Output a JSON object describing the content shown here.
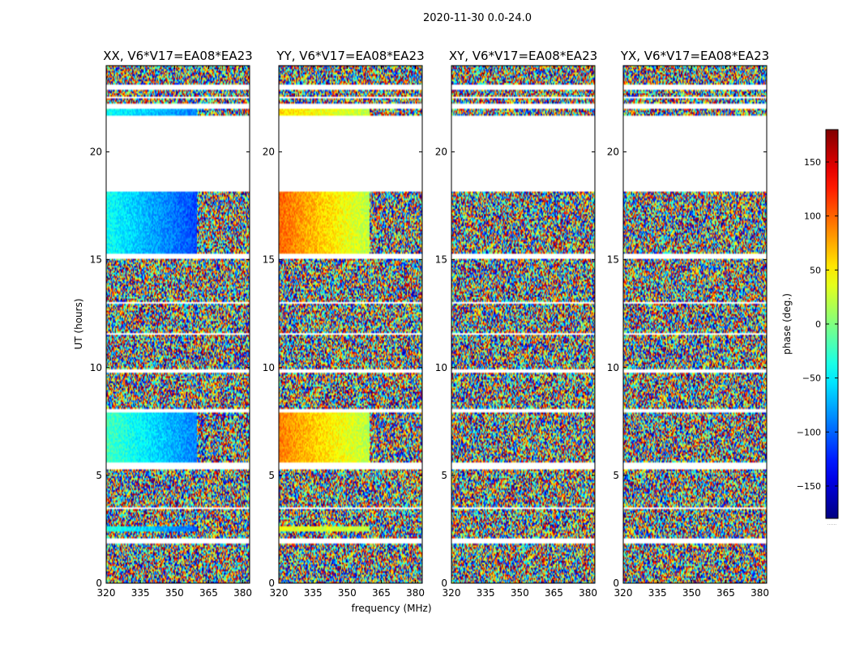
{
  "suptitle": "2020-11-30 0.0-24.0",
  "chart_data": {
    "type": "heatmap",
    "title": "2020-11-30 0.0-24.0",
    "xlabel": "frequency (MHz)",
    "ylabel": "UT (hours)",
    "xlim": [
      320,
      383
    ],
    "ylim": [
      0,
      24
    ],
    "xticks": [
      "320",
      "335",
      "350",
      "365",
      "380"
    ],
    "xtick_values": [
      320,
      335,
      350,
      365,
      380
    ],
    "yticks": [
      "0",
      "5",
      "10",
      "15",
      "20"
    ],
    "ytick_values": [
      0,
      5,
      10,
      15,
      20
    ],
    "panels": [
      {
        "title": "XX, V6*V17=EA08*EA23",
        "pol": "XX",
        "smooth_phase_blocks": [
          {
            "ut": [
              5.6,
              7.9
            ],
            "phase_low_freq": -20,
            "phase_high_freq": -90
          },
          {
            "ut": [
              15.3,
              18.2
            ],
            "phase_low_freq": -40,
            "phase_high_freq": -110
          },
          {
            "ut": [
              2.4,
              2.6
            ],
            "phase_low_freq": -30,
            "phase_high_freq": -100
          },
          {
            "ut": [
              21.7,
              22.0
            ],
            "phase_low_freq": -40,
            "phase_high_freq": -90
          }
        ]
      },
      {
        "title": "YY, V6*V17=EA08*EA23",
        "pol": "YY",
        "smooth_phase_blocks": [
          {
            "ut": [
              5.6,
              7.9
            ],
            "phase_low_freq": 90,
            "phase_high_freq": 20
          },
          {
            "ut": [
              15.3,
              18.2
            ],
            "phase_low_freq": 100,
            "phase_high_freq": 20
          },
          {
            "ut": [
              2.4,
              2.6
            ],
            "phase_low_freq": 40,
            "phase_high_freq": 20
          },
          {
            "ut": [
              21.7,
              22.0
            ],
            "phase_low_freq": 60,
            "phase_high_freq": 20
          }
        ]
      },
      {
        "title": "XY, V6*V17=EA08*EA23",
        "pol": "XY",
        "smooth_phase_blocks": []
      },
      {
        "title": "YX, V6*V17=EA08*EA23",
        "pol": "YX",
        "smooth_phase_blocks": []
      }
    ],
    "data_gaps_ut": [
      [
        18.2,
        21.7
      ],
      [
        22.0,
        22.2
      ],
      [
        22.45,
        22.55
      ],
      [
        22.9,
        23.1
      ],
      [
        5.3,
        5.6
      ],
      [
        15.05,
        15.3
      ],
      [
        1.85,
        2.05
      ],
      [
        3.45,
        3.55
      ],
      [
        11.5,
        11.6
      ],
      [
        7.9,
        8.05
      ],
      [
        13.0,
        13.07
      ],
      [
        9.8,
        9.88
      ]
    ],
    "colorbar": {
      "label": "phase (deg.)",
      "range": [
        -180,
        180
      ],
      "ticks": [
        "150",
        "100",
        "50",
        "0",
        "−50",
        "−100",
        "−150"
      ],
      "tick_values": [
        150,
        100,
        50,
        0,
        -50,
        -100,
        -150
      ],
      "colormap": "jet",
      "footer_text": "......"
    }
  }
}
